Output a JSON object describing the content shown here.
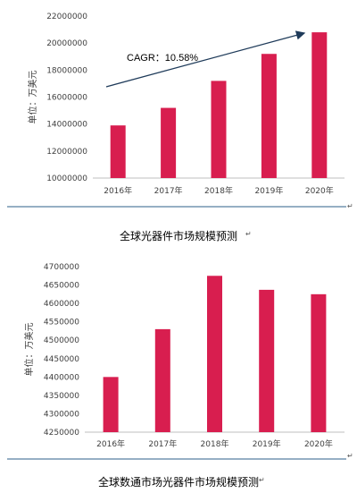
{
  "chart_data": [
    {
      "type": "bar",
      "categories": [
        "2016年",
        "2017年",
        "2018年",
        "2019年",
        "2020年"
      ],
      "values": [
        13900000,
        15200000,
        17200000,
        19200000,
        20800000
      ],
      "ylabel": "单位：万美元",
      "ylim": [
        10000000,
        22000000
      ],
      "yticks": [
        "10000000",
        "12000000",
        "14000000",
        "16000000",
        "18000000",
        "20000000",
        "22000000"
      ],
      "annotation": "CAGR：10.58%",
      "bar_color": "#d81e4f",
      "grid": false
    },
    {
      "type": "bar",
      "categories": [
        "2016年",
        "2017年",
        "2018年",
        "2019年",
        "2020年"
      ],
      "values": [
        4400000,
        4530000,
        4675000,
        4637000,
        4625000
      ],
      "ylabel": "单位：万美元",
      "ylim": [
        4250000,
        4700000
      ],
      "yticks": [
        "4250000",
        "4300000",
        "4350000",
        "4400000",
        "4450000",
        "4500000",
        "4550000",
        "4600000",
        "4650000",
        "4700000"
      ],
      "bar_color": "#d81e4f",
      "grid": false
    }
  ],
  "captions": {
    "chart1": "全球光器件市场规模预测",
    "chart2": "全球数通市场光器件市场规模预测"
  },
  "para_mark": "↵",
  "colors": {
    "bar": "#d81e4f",
    "rule": "#2e5f8a",
    "axis": "#bfbfbf"
  }
}
